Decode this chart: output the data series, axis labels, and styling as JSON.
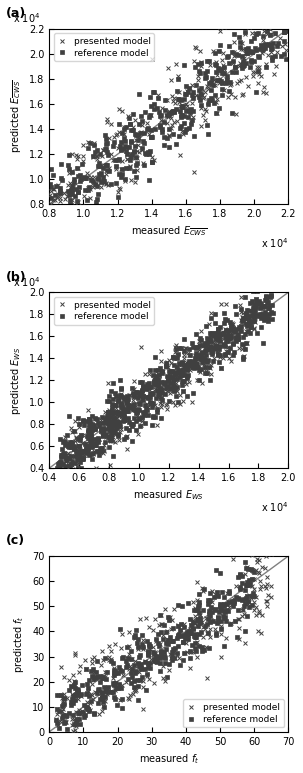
{
  "panel_a": {
    "label": "(a)",
    "xlabel": "measured $E_{\\overline{CWS}}$",
    "ylabel": "predicted $E_{\\overline{CWS}}$",
    "xlabel_sci": "x 10$^4$",
    "ylabel_sci": "x 10$^4$",
    "xlim": [
      8000.0,
      22000.0
    ],
    "ylim": [
      8000.0,
      22000.0
    ],
    "xticks": [
      8000.0,
      10000.0,
      12000.0,
      14000.0,
      16000.0,
      18000.0,
      20000.0,
      22000.0
    ],
    "yticks": [
      8000.0,
      10000.0,
      12000.0,
      14000.0,
      16000.0,
      18000.0,
      20000.0,
      22000.0
    ],
    "xtick_labels": [
      "0.8",
      "1.0",
      "1.2",
      "1.4",
      "1.6",
      "1.8",
      "2.0",
      "2.2"
    ],
    "ytick_labels": [
      "0.8",
      "1.0",
      "1.2",
      "1.4",
      "1.6",
      "1.8",
      "2.0",
      "2.2"
    ],
    "n_presented": 300,
    "n_reference": 400,
    "seed_presented": 42,
    "seed_reference": 123,
    "legend_loc": "upper left",
    "legend_inside": true
  },
  "panel_b": {
    "label": "(b)",
    "xlabel": "measured $E_{WS}$",
    "ylabel": "predicted $E_{WS}$",
    "xlabel_sci": "x 10$^4$",
    "ylabel_sci": "x 10$^4$",
    "xlim": [
      4000.0,
      20000.0
    ],
    "ylim": [
      4000.0,
      20000.0
    ],
    "xticks": [
      4000.0,
      6000.0,
      8000.0,
      10000.0,
      12000.0,
      14000.0,
      16000.0,
      18000.0,
      20000.0
    ],
    "yticks": [
      4000.0,
      6000.0,
      8000.0,
      10000.0,
      12000.0,
      14000.0,
      16000.0,
      18000.0,
      20000.0
    ],
    "xtick_labels": [
      "0.4",
      "0.6",
      "0.8",
      "1.0",
      "1.2",
      "1.4",
      "1.6",
      "1.8",
      "2.0"
    ],
    "ytick_labels": [
      "0.4",
      "0.6",
      "0.8",
      "1.0",
      "1.2",
      "1.4",
      "1.6",
      "1.8",
      "2.0"
    ],
    "n_presented": 300,
    "n_reference": 700,
    "seed_presented": 55,
    "seed_reference": 77,
    "legend_loc": "upper left",
    "legend_inside": true
  },
  "panel_c": {
    "label": "(c)",
    "xlabel": "measured $f_t$",
    "ylabel": "predicted $f_t$",
    "xlim": [
      0,
      70
    ],
    "ylim": [
      0,
      70
    ],
    "xticks": [
      0,
      10,
      20,
      30,
      40,
      50,
      60,
      70
    ],
    "yticks": [
      0,
      10,
      20,
      30,
      40,
      50,
      60,
      70
    ],
    "n_presented": 300,
    "n_reference": 400,
    "seed_presented": 88,
    "seed_reference": 99,
    "legend_loc": "lower right",
    "legend_inside": true
  },
  "marker_presented": "x",
  "marker_reference": "s",
  "color": "#404040",
  "markersize_presented": 3,
  "markersize_reference": 2.5,
  "linewidth_scatter": 0.5,
  "diag_color": "#808080",
  "diag_linewidth": 1.0,
  "fontsize_label": 7,
  "fontsize_tick": 7,
  "fontsize_legend": 6.5,
  "fontsize_panel_label": 9
}
